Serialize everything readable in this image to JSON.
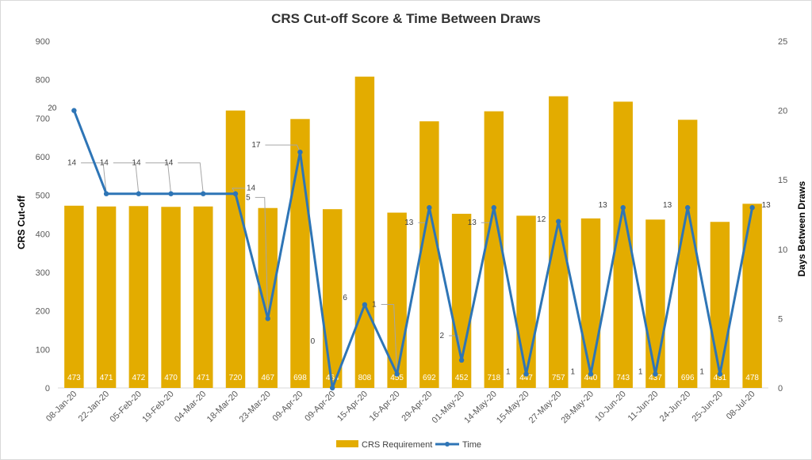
{
  "chart_data": {
    "type": "bar",
    "title": "CRS Cut-off Score & Time Between Draws",
    "ylabel": "CRS Cut-off",
    "y2label": "Days Between Draws",
    "ylim": [
      0,
      900
    ],
    "y2lim": [
      0,
      25
    ],
    "yticks": [
      "0",
      "100",
      "200",
      "300",
      "400",
      "500",
      "600",
      "700",
      "800",
      "900"
    ],
    "y2ticks": [
      "0",
      "5",
      "10",
      "15",
      "20",
      "25"
    ],
    "categories": [
      "08-Jan-20",
      "22-Jan-20",
      "05-Feb-20",
      "19-Feb-20",
      "04-Mar-20",
      "18-Mar-20",
      "23-Mar-20",
      "09-Apr-20",
      "09-Apr-20",
      "15-Apr-20",
      "16-Apr-20",
      "29-Apr-20",
      "01-May-20",
      "14-May-20",
      "15-May-20",
      "27-May-20",
      "28-May-20",
      "10-Jun-20",
      "11-Jun-20",
      "24-Jun-20",
      "25-Jun-20",
      "08-Jul-20"
    ],
    "series": [
      {
        "name": "CRS Requirement",
        "type": "bar",
        "axis": "left",
        "color": "#E3AC00",
        "values": [
          473,
          471,
          472,
          470,
          471,
          720,
          467,
          698,
          464,
          808,
          455,
          692,
          452,
          718,
          447,
          757,
          440,
          743,
          437,
          696,
          431,
          478
        ]
      },
      {
        "name": "Time",
        "type": "line",
        "axis": "right",
        "color": "#2E75B6",
        "values": [
          20,
          14,
          14,
          14,
          14,
          14,
          5,
          17,
          0,
          6,
          1,
          13,
          2,
          13,
          1,
          12,
          1,
          13,
          1,
          13,
          1,
          13
        ]
      }
    ],
    "legend": "bottom",
    "grid": false
  }
}
